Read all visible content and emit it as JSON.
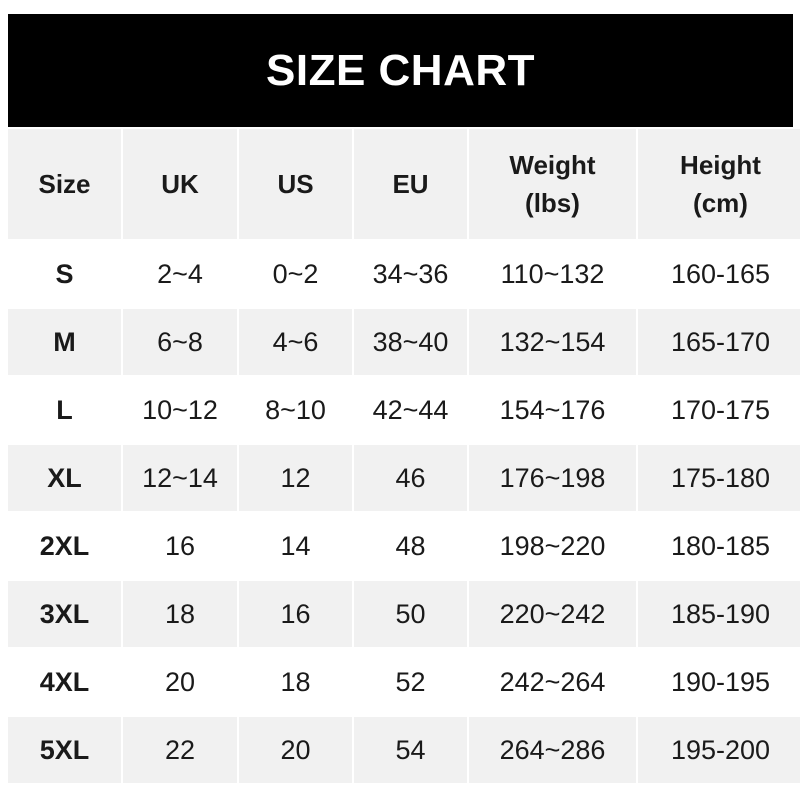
{
  "title": "SIZE CHART",
  "headers": [
    "Size",
    "UK",
    "US",
    "EU",
    "Weight\n(lbs)",
    "Height\n(cm)"
  ],
  "header_lines": {
    "weight": [
      "Weight",
      "(lbs)"
    ],
    "height": [
      "Height",
      "(cm)"
    ]
  },
  "rows": [
    [
      "S",
      "2~4",
      "0~2",
      "34~36",
      "110~132",
      "160-165"
    ],
    [
      "M",
      "6~8",
      "4~6",
      "38~40",
      "132~154",
      "165-170"
    ],
    [
      "L",
      "10~12",
      "8~10",
      "42~44",
      "154~176",
      "170-175"
    ],
    [
      "XL",
      "12~14",
      "12",
      "46",
      "176~198",
      "175-180"
    ],
    [
      "2XL",
      "16",
      "14",
      "48",
      "198~220",
      "180-185"
    ],
    [
      "3XL",
      "18",
      "16",
      "50",
      "220~242",
      "185-190"
    ],
    [
      "4XL",
      "20",
      "18",
      "52",
      "242~264",
      "190-195"
    ],
    [
      "5XL",
      "22",
      "20",
      "54",
      "264~286",
      "195-200"
    ]
  ],
  "colors": {
    "title_bg": "#000000",
    "title_text": "#ffffff",
    "stripe": "#f1f1f1",
    "text": "#1a1a1a"
  }
}
